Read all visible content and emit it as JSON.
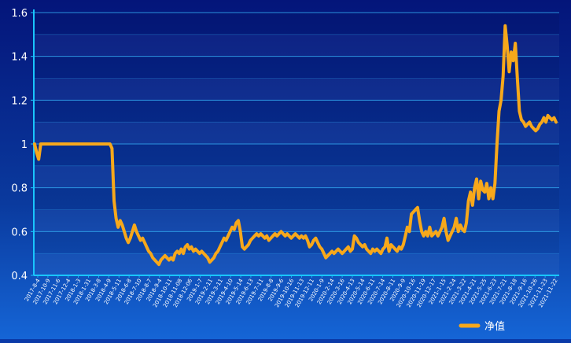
{
  "chart_data": {
    "type": "line",
    "title": "",
    "xlabel": "",
    "ylabel": "",
    "ylim": [
      0.4,
      1.6
    ],
    "yticks": [
      "0.4",
      "0.6",
      "0.8",
      "1",
      "1.2",
      "1.4",
      "1.6"
    ],
    "grid": true,
    "legend_position": "bottom-right",
    "x_tick_labels": [
      "2017-8-4",
      "2017-10-9",
      "2017-11-6",
      "2017-12-4",
      "2018-1-3",
      "2018-1-31",
      "2018-3-8",
      "2018-4-9",
      "2018-5-11",
      "2018-6-8",
      "2018-7-10",
      "2018-8-7",
      "2018-9-4",
      "2018-10-11",
      "2018-11-08",
      "2018-12-06",
      "2019-1-7",
      "2019-2-11",
      "2019-3-11",
      "2019-4-10",
      "2019-5-14",
      "2019-6-13",
      "2019-7-11",
      "2019-8-8",
      "2019-9-6",
      "2019-10-16",
      "2019-11-13",
      "2019-12-11",
      "2020-1-9",
      "2020-2-14",
      "2020-3-16",
      "2020-4-13",
      "2020-5-14",
      "2020-6-11",
      "2020-7-14",
      "2020-8-11",
      "2020-9-9",
      "2020-10-16",
      "2020-11-19",
      "2020-12-17",
      "2021-1-15",
      "2021-2-24",
      "2021-3-22",
      "2021-4-21",
      "2021-5-25",
      "2021-6-23",
      "2021-7-21",
      "2021-8-18",
      "2021-9-16",
      "2021-10-26",
      "2021-11-23",
      "2021-11-22"
    ],
    "colors": {
      "line": "#f7a81b",
      "grid": "#2f9ee8",
      "axis": "#19c6ff"
    },
    "series": [
      {
        "name": "净值",
        "values": [
          1.0,
          0.96,
          0.93,
          1.0,
          1.0,
          1.0,
          1.0,
          1.0,
          1.0,
          1.0,
          1.0,
          1.0,
          1.0,
          1.0,
          1.0,
          1.0,
          1.0,
          1.0,
          1.0,
          1.0,
          1.0,
          1.0,
          1.0,
          1.0,
          1.0,
          1.0,
          1.0,
          1.0,
          1.0,
          1.0,
          1.0,
          1.0,
          1.0,
          1.0,
          1.0,
          1.0,
          1.0,
          1.0,
          0.98,
          0.74,
          0.66,
          0.62,
          0.65,
          0.63,
          0.6,
          0.57,
          0.55,
          0.57,
          0.6,
          0.63,
          0.6,
          0.58,
          0.56,
          0.57,
          0.55,
          0.53,
          0.51,
          0.5,
          0.48,
          0.47,
          0.46,
          0.45,
          0.47,
          0.48,
          0.49,
          0.48,
          0.47,
          0.48,
          0.47,
          0.5,
          0.51,
          0.5,
          0.52,
          0.5,
          0.53,
          0.54,
          0.52,
          0.53,
          0.51,
          0.52,
          0.51,
          0.5,
          0.51,
          0.5,
          0.49,
          0.48,
          0.46,
          0.47,
          0.48,
          0.5,
          0.51,
          0.53,
          0.55,
          0.57,
          0.56,
          0.58,
          0.6,
          0.62,
          0.61,
          0.64,
          0.65,
          0.6,
          0.53,
          0.52,
          0.53,
          0.54,
          0.56,
          0.57,
          0.58,
          0.59,
          0.58,
          0.59,
          0.58,
          0.57,
          0.58,
          0.56,
          0.57,
          0.58,
          0.59,
          0.58,
          0.59,
          0.6,
          0.59,
          0.58,
          0.59,
          0.58,
          0.57,
          0.58,
          0.59,
          0.58,
          0.57,
          0.58,
          0.57,
          0.58,
          0.56,
          0.53,
          0.54,
          0.56,
          0.57,
          0.55,
          0.53,
          0.52,
          0.5,
          0.48,
          0.49,
          0.5,
          0.51,
          0.5,
          0.51,
          0.52,
          0.51,
          0.5,
          0.51,
          0.52,
          0.53,
          0.51,
          0.52,
          0.58,
          0.57,
          0.55,
          0.54,
          0.53,
          0.54,
          0.52,
          0.51,
          0.5,
          0.52,
          0.51,
          0.52,
          0.51,
          0.5,
          0.52,
          0.53,
          0.57,
          0.51,
          0.54,
          0.53,
          0.52,
          0.51,
          0.53,
          0.52,
          0.54,
          0.58,
          0.62,
          0.6,
          0.68,
          0.69,
          0.7,
          0.71,
          0.65,
          0.6,
          0.58,
          0.6,
          0.58,
          0.62,
          0.58,
          0.59,
          0.6,
          0.58,
          0.6,
          0.62,
          0.66,
          0.6,
          0.56,
          0.58,
          0.6,
          0.62,
          0.66,
          0.6,
          0.63,
          0.61,
          0.6,
          0.64,
          0.74,
          0.78,
          0.72,
          0.8,
          0.84,
          0.75,
          0.83,
          0.79,
          0.78,
          0.82,
          0.75,
          0.8,
          0.75,
          0.82,
          1.0,
          1.15,
          1.2,
          1.31,
          1.54,
          1.45,
          1.33,
          1.42,
          1.38,
          1.46,
          1.3,
          1.15,
          1.11,
          1.1,
          1.08,
          1.09,
          1.1,
          1.08,
          1.07,
          1.06,
          1.07,
          1.09,
          1.1,
          1.12,
          1.1,
          1.13,
          1.12,
          1.11,
          1.12,
          1.1
        ]
      }
    ]
  }
}
